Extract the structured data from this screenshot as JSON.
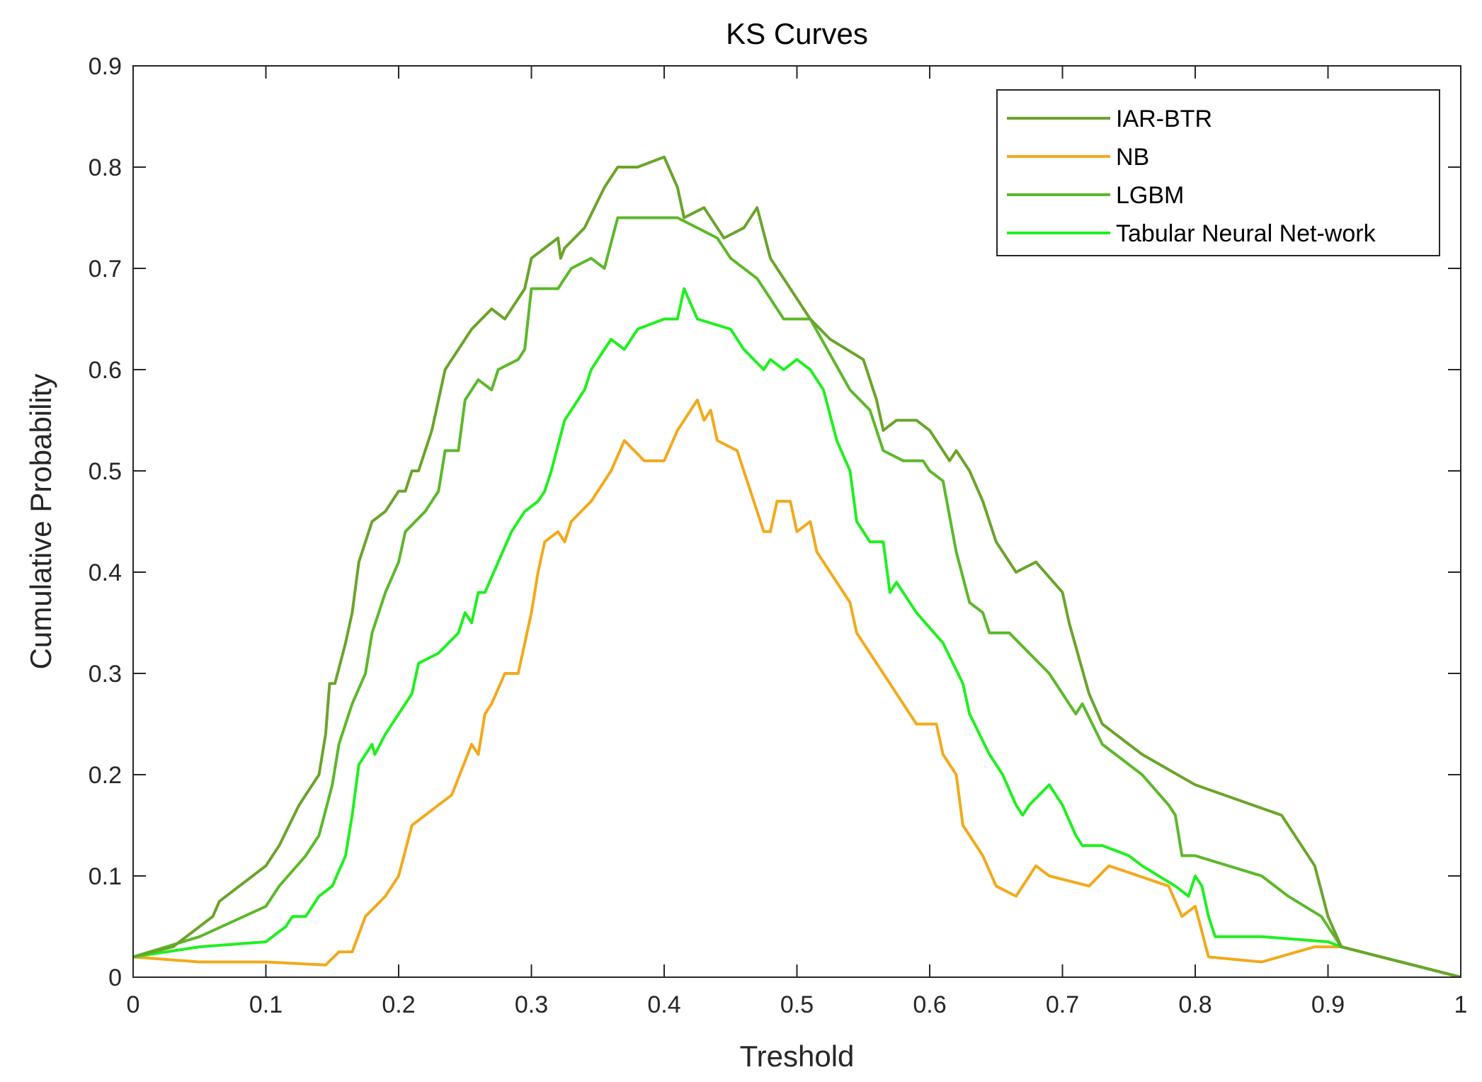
{
  "chart_data": {
    "type": "line",
    "title": "KS Curves",
    "xlabel": "Treshold",
    "ylabel": "Cumulative Probability",
    "xlim": [
      0,
      1
    ],
    "ylim": [
      0,
      0.9
    ],
    "xticks": [
      0,
      0.1,
      0.2,
      0.3,
      0.4,
      0.5,
      0.6,
      0.7,
      0.8,
      0.9,
      1
    ],
    "xtick_labels": [
      "0",
      "0.1",
      "0.2",
      "0.3",
      "0.4",
      "0.5",
      "0.6",
      "0.7",
      "0.8",
      "0.9",
      "1"
    ],
    "yticks": [
      0,
      0.1,
      0.2,
      0.3,
      0.4,
      0.5,
      0.6,
      0.7,
      0.8,
      0.9
    ],
    "ytick_labels": [
      "0",
      "0.1",
      "0.2",
      "0.3",
      "0.4",
      "0.5",
      "0.6",
      "0.7",
      "0.8",
      "0.9"
    ],
    "grid": false,
    "legend_position": "top-right",
    "series": [
      {
        "name": "IAR-BTR",
        "color": "#6aa42a",
        "points": [
          [
            0,
            0.02
          ],
          [
            0.03,
            0.03
          ],
          [
            0.06,
            0.06
          ],
          [
            0.065,
            0.075
          ],
          [
            0.1,
            0.11
          ],
          [
            0.11,
            0.13
          ],
          [
            0.125,
            0.17
          ],
          [
            0.135,
            0.19
          ],
          [
            0.14,
            0.2
          ],
          [
            0.145,
            0.24
          ],
          [
            0.148,
            0.29
          ],
          [
            0.152,
            0.29
          ],
          [
            0.16,
            0.33
          ],
          [
            0.165,
            0.36
          ],
          [
            0.17,
            0.41
          ],
          [
            0.18,
            0.45
          ],
          [
            0.19,
            0.46
          ],
          [
            0.2,
            0.48
          ],
          [
            0.205,
            0.48
          ],
          [
            0.21,
            0.5
          ],
          [
            0.215,
            0.5
          ],
          [
            0.22,
            0.52
          ],
          [
            0.225,
            0.54
          ],
          [
            0.235,
            0.6
          ],
          [
            0.245,
            0.62
          ],
          [
            0.255,
            0.64
          ],
          [
            0.27,
            0.66
          ],
          [
            0.28,
            0.65
          ],
          [
            0.295,
            0.68
          ],
          [
            0.3,
            0.71
          ],
          [
            0.32,
            0.73
          ],
          [
            0.322,
            0.71
          ],
          [
            0.325,
            0.72
          ],
          [
            0.34,
            0.74
          ],
          [
            0.355,
            0.78
          ],
          [
            0.365,
            0.8
          ],
          [
            0.38,
            0.8
          ],
          [
            0.4,
            0.81
          ],
          [
            0.41,
            0.78
          ],
          [
            0.415,
            0.75
          ],
          [
            0.43,
            0.76
          ],
          [
            0.445,
            0.73
          ],
          [
            0.46,
            0.74
          ],
          [
            0.47,
            0.76
          ],
          [
            0.48,
            0.71
          ],
          [
            0.5,
            0.67
          ],
          [
            0.51,
            0.65
          ],
          [
            0.525,
            0.63
          ],
          [
            0.55,
            0.61
          ],
          [
            0.56,
            0.57
          ],
          [
            0.565,
            0.54
          ],
          [
            0.575,
            0.55
          ],
          [
            0.59,
            0.55
          ],
          [
            0.6,
            0.54
          ],
          [
            0.615,
            0.51
          ],
          [
            0.62,
            0.52
          ],
          [
            0.63,
            0.5
          ],
          [
            0.64,
            0.47
          ],
          [
            0.65,
            0.43
          ],
          [
            0.665,
            0.4
          ],
          [
            0.68,
            0.41
          ],
          [
            0.7,
            0.38
          ],
          [
            0.705,
            0.35
          ],
          [
            0.72,
            0.28
          ],
          [
            0.73,
            0.25
          ],
          [
            0.76,
            0.22
          ],
          [
            0.8,
            0.19
          ],
          [
            0.865,
            0.16
          ],
          [
            0.89,
            0.11
          ],
          [
            0.9,
            0.06
          ],
          [
            0.91,
            0.03
          ],
          [
            1,
            0
          ]
        ]
      },
      {
        "name": "NB",
        "color": "#f2a91b",
        "points": [
          [
            0,
            0.02
          ],
          [
            0.05,
            0.015
          ],
          [
            0.1,
            0.015
          ],
          [
            0.145,
            0.012
          ],
          [
            0.155,
            0.025
          ],
          [
            0.165,
            0.025
          ],
          [
            0.175,
            0.06
          ],
          [
            0.19,
            0.08
          ],
          [
            0.2,
            0.1
          ],
          [
            0.21,
            0.15
          ],
          [
            0.22,
            0.16
          ],
          [
            0.24,
            0.18
          ],
          [
            0.255,
            0.23
          ],
          [
            0.26,
            0.22
          ],
          [
            0.265,
            0.26
          ],
          [
            0.27,
            0.27
          ],
          [
            0.28,
            0.3
          ],
          [
            0.29,
            0.3
          ],
          [
            0.3,
            0.36
          ],
          [
            0.305,
            0.4
          ],
          [
            0.31,
            0.43
          ],
          [
            0.32,
            0.44
          ],
          [
            0.325,
            0.43
          ],
          [
            0.33,
            0.45
          ],
          [
            0.345,
            0.47
          ],
          [
            0.36,
            0.5
          ],
          [
            0.37,
            0.53
          ],
          [
            0.385,
            0.51
          ],
          [
            0.4,
            0.51
          ],
          [
            0.41,
            0.54
          ],
          [
            0.42,
            0.56
          ],
          [
            0.425,
            0.57
          ],
          [
            0.43,
            0.55
          ],
          [
            0.435,
            0.56
          ],
          [
            0.44,
            0.53
          ],
          [
            0.455,
            0.52
          ],
          [
            0.46,
            0.5
          ],
          [
            0.47,
            0.46
          ],
          [
            0.475,
            0.44
          ],
          [
            0.48,
            0.44
          ],
          [
            0.485,
            0.47
          ],
          [
            0.49,
            0.47
          ],
          [
            0.495,
            0.47
          ],
          [
            0.5,
            0.44
          ],
          [
            0.51,
            0.45
          ],
          [
            0.515,
            0.42
          ],
          [
            0.54,
            0.37
          ],
          [
            0.545,
            0.34
          ],
          [
            0.56,
            0.31
          ],
          [
            0.57,
            0.29
          ],
          [
            0.58,
            0.27
          ],
          [
            0.59,
            0.25
          ],
          [
            0.605,
            0.25
          ],
          [
            0.61,
            0.22
          ],
          [
            0.62,
            0.2
          ],
          [
            0.625,
            0.15
          ],
          [
            0.64,
            0.12
          ],
          [
            0.65,
            0.09
          ],
          [
            0.665,
            0.08
          ],
          [
            0.68,
            0.11
          ],
          [
            0.69,
            0.1
          ],
          [
            0.72,
            0.09
          ],
          [
            0.735,
            0.11
          ],
          [
            0.78,
            0.09
          ],
          [
            0.79,
            0.06
          ],
          [
            0.8,
            0.07
          ],
          [
            0.81,
            0.02
          ],
          [
            0.85,
            0.015
          ],
          [
            0.89,
            0.03
          ],
          [
            0.91,
            0.03
          ],
          [
            1,
            0
          ]
        ]
      },
      {
        "name": "LGBM",
        "color": "#5cb82a",
        "points": [
          [
            0,
            0.02
          ],
          [
            0.05,
            0.04
          ],
          [
            0.1,
            0.07
          ],
          [
            0.11,
            0.09
          ],
          [
            0.13,
            0.12
          ],
          [
            0.14,
            0.14
          ],
          [
            0.15,
            0.19
          ],
          [
            0.155,
            0.23
          ],
          [
            0.165,
            0.27
          ],
          [
            0.175,
            0.3
          ],
          [
            0.18,
            0.34
          ],
          [
            0.19,
            0.38
          ],
          [
            0.2,
            0.41
          ],
          [
            0.205,
            0.44
          ],
          [
            0.22,
            0.46
          ],
          [
            0.23,
            0.48
          ],
          [
            0.235,
            0.52
          ],
          [
            0.245,
            0.52
          ],
          [
            0.25,
            0.57
          ],
          [
            0.26,
            0.59
          ],
          [
            0.27,
            0.58
          ],
          [
            0.275,
            0.6
          ],
          [
            0.29,
            0.61
          ],
          [
            0.295,
            0.62
          ],
          [
            0.3,
            0.68
          ],
          [
            0.31,
            0.68
          ],
          [
            0.32,
            0.68
          ],
          [
            0.33,
            0.7
          ],
          [
            0.345,
            0.71
          ],
          [
            0.355,
            0.7
          ],
          [
            0.365,
            0.75
          ],
          [
            0.41,
            0.75
          ],
          [
            0.44,
            0.73
          ],
          [
            0.45,
            0.71
          ],
          [
            0.47,
            0.69
          ],
          [
            0.48,
            0.67
          ],
          [
            0.49,
            0.65
          ],
          [
            0.5,
            0.65
          ],
          [
            0.51,
            0.65
          ],
          [
            0.54,
            0.58
          ],
          [
            0.555,
            0.56
          ],
          [
            0.565,
            0.52
          ],
          [
            0.58,
            0.51
          ],
          [
            0.595,
            0.51
          ],
          [
            0.6,
            0.5
          ],
          [
            0.61,
            0.49
          ],
          [
            0.62,
            0.42
          ],
          [
            0.63,
            0.37
          ],
          [
            0.64,
            0.36
          ],
          [
            0.645,
            0.34
          ],
          [
            0.66,
            0.34
          ],
          [
            0.675,
            0.32
          ],
          [
            0.69,
            0.3
          ],
          [
            0.7,
            0.28
          ],
          [
            0.71,
            0.26
          ],
          [
            0.715,
            0.27
          ],
          [
            0.73,
            0.23
          ],
          [
            0.76,
            0.2
          ],
          [
            0.78,
            0.17
          ],
          [
            0.785,
            0.16
          ],
          [
            0.79,
            0.12
          ],
          [
            0.8,
            0.12
          ],
          [
            0.85,
            0.1
          ],
          [
            0.87,
            0.08
          ],
          [
            0.895,
            0.06
          ],
          [
            0.91,
            0.03
          ],
          [
            1,
            0
          ]
        ]
      },
      {
        "name": "Tabular Neural Net-work",
        "color": "#1ff01f",
        "points": [
          [
            0,
            0.02
          ],
          [
            0.05,
            0.03
          ],
          [
            0.1,
            0.035
          ],
          [
            0.115,
            0.05
          ],
          [
            0.12,
            0.06
          ],
          [
            0.13,
            0.06
          ],
          [
            0.14,
            0.08
          ],
          [
            0.15,
            0.09
          ],
          [
            0.16,
            0.12
          ],
          [
            0.165,
            0.16
          ],
          [
            0.17,
            0.21
          ],
          [
            0.18,
            0.23
          ],
          [
            0.182,
            0.22
          ],
          [
            0.19,
            0.24
          ],
          [
            0.2,
            0.26
          ],
          [
            0.21,
            0.28
          ],
          [
            0.215,
            0.31
          ],
          [
            0.23,
            0.32
          ],
          [
            0.245,
            0.34
          ],
          [
            0.25,
            0.36
          ],
          [
            0.255,
            0.35
          ],
          [
            0.26,
            0.38
          ],
          [
            0.265,
            0.38
          ],
          [
            0.275,
            0.41
          ],
          [
            0.285,
            0.44
          ],
          [
            0.295,
            0.46
          ],
          [
            0.305,
            0.47
          ],
          [
            0.31,
            0.48
          ],
          [
            0.315,
            0.5
          ],
          [
            0.325,
            0.55
          ],
          [
            0.34,
            0.58
          ],
          [
            0.345,
            0.6
          ],
          [
            0.355,
            0.62
          ],
          [
            0.36,
            0.63
          ],
          [
            0.37,
            0.62
          ],
          [
            0.38,
            0.64
          ],
          [
            0.4,
            0.65
          ],
          [
            0.41,
            0.65
          ],
          [
            0.415,
            0.68
          ],
          [
            0.425,
            0.65
          ],
          [
            0.45,
            0.64
          ],
          [
            0.46,
            0.62
          ],
          [
            0.475,
            0.6
          ],
          [
            0.48,
            0.61
          ],
          [
            0.49,
            0.6
          ],
          [
            0.5,
            0.61
          ],
          [
            0.51,
            0.6
          ],
          [
            0.52,
            0.58
          ],
          [
            0.53,
            0.53
          ],
          [
            0.54,
            0.5
          ],
          [
            0.545,
            0.45
          ],
          [
            0.555,
            0.43
          ],
          [
            0.565,
            0.43
          ],
          [
            0.57,
            0.38
          ],
          [
            0.575,
            0.39
          ],
          [
            0.59,
            0.36
          ],
          [
            0.61,
            0.33
          ],
          [
            0.625,
            0.29
          ],
          [
            0.63,
            0.26
          ],
          [
            0.645,
            0.22
          ],
          [
            0.655,
            0.2
          ],
          [
            0.665,
            0.17
          ],
          [
            0.67,
            0.16
          ],
          [
            0.675,
            0.17
          ],
          [
            0.69,
            0.19
          ],
          [
            0.7,
            0.17
          ],
          [
            0.71,
            0.14
          ],
          [
            0.715,
            0.13
          ],
          [
            0.73,
            0.13
          ],
          [
            0.75,
            0.12
          ],
          [
            0.76,
            0.11
          ],
          [
            0.785,
            0.09
          ],
          [
            0.795,
            0.08
          ],
          [
            0.8,
            0.1
          ],
          [
            0.805,
            0.09
          ],
          [
            0.81,
            0.06
          ],
          [
            0.815,
            0.04
          ],
          [
            0.85,
            0.04
          ],
          [
            0.9,
            0.035
          ],
          [
            0.91,
            0.03
          ],
          [
            1,
            0
          ]
        ]
      }
    ]
  }
}
